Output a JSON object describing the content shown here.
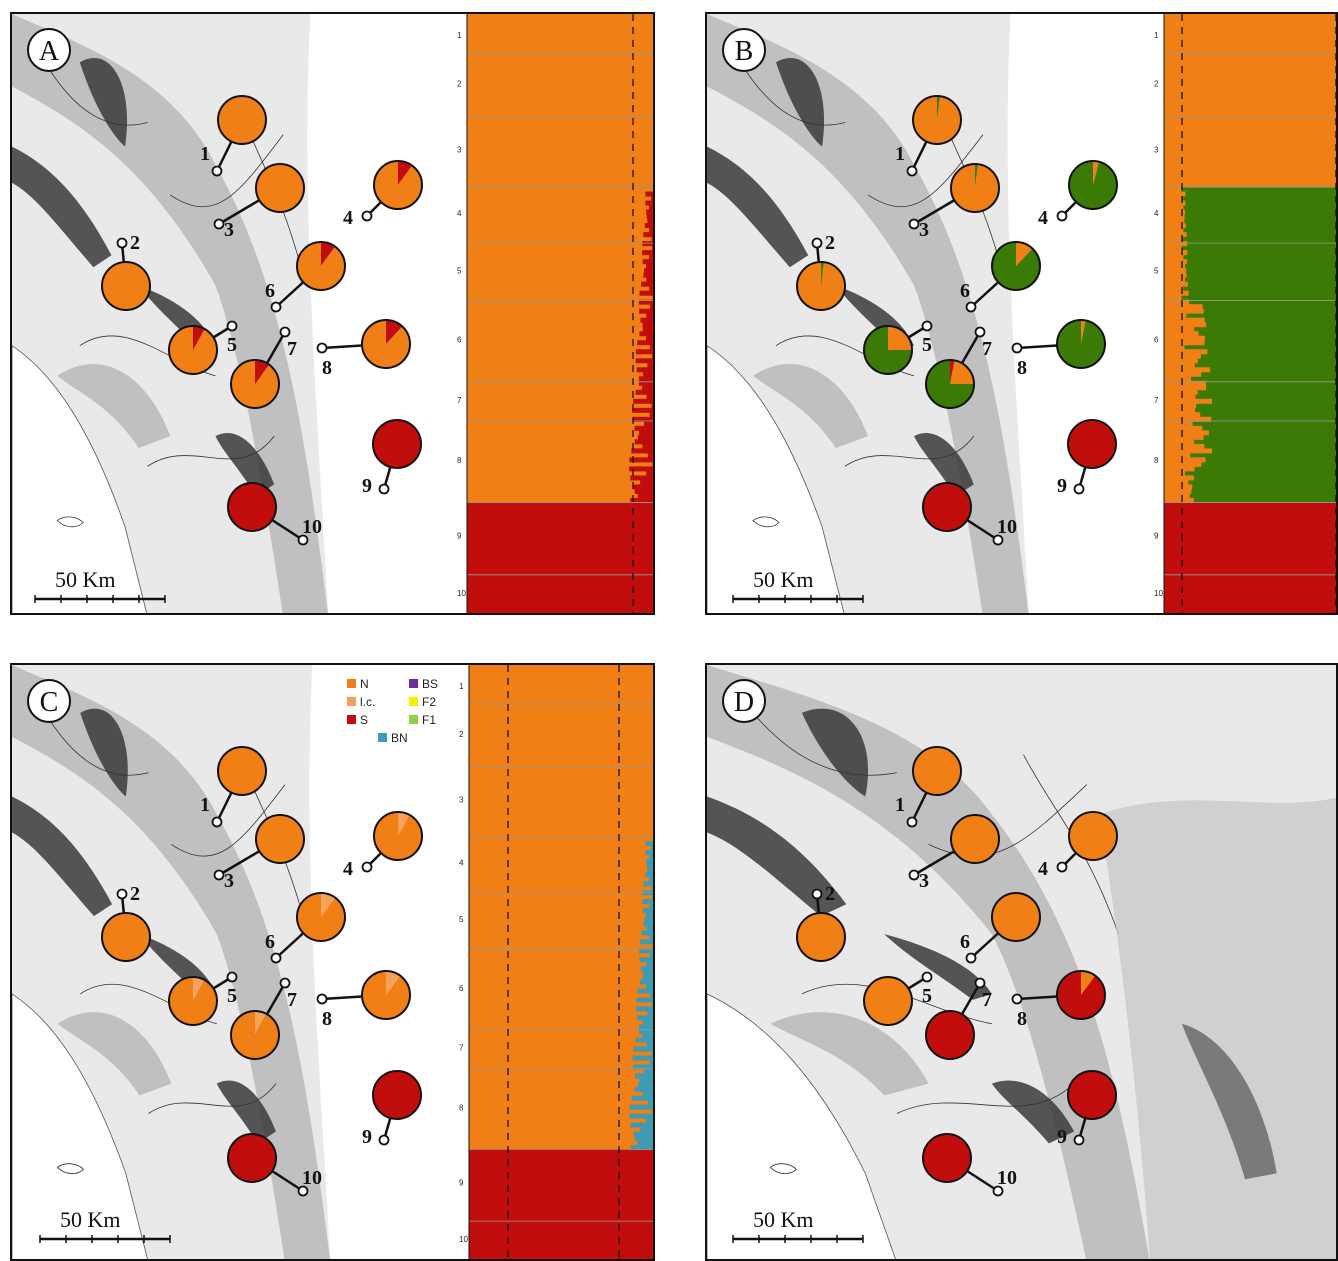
{
  "colors": {
    "N": "#f07f16",
    "S": "#c20d0d",
    "green": "#3a7a05",
    "BN": "#3d9cb4",
    "BS": "#6b2aa0",
    "F2": "#f3f000",
    "F1": "#8fcf4d",
    "map_dark": "#3a3a3a",
    "map_mid": "#8a8a8a",
    "map_light": "#cfcfcf"
  },
  "scale_label": "50 Km",
  "legend": [
    {
      "key": "N",
      "label": "N",
      "color": "#f07f16"
    },
    {
      "key": "lc",
      "label": "l.c.",
      "color": "#f0a060"
    },
    {
      "key": "S",
      "label": "S",
      "color": "#c20d0d"
    },
    {
      "key": "BN",
      "label": "BN",
      "color": "#3d9cb4"
    },
    {
      "key": "BS",
      "label": "BS",
      "color": "#6b2aa0"
    },
    {
      "key": "F2",
      "label": "F2",
      "color": "#f3f000"
    },
    {
      "key": "F1",
      "label": "F1",
      "color": "#8fcf4d"
    }
  ],
  "bar_ticks": [
    "1",
    "2",
    "3",
    "4",
    "5",
    "6",
    "7",
    "8",
    "9",
    "10"
  ],
  "panels": [
    {
      "id": "A",
      "pies": [
        {
          "label": "1",
          "slices": [
            {
              "c": "N",
              "f": 1.0
            }
          ]
        },
        {
          "label": "2",
          "slices": [
            {
              "c": "N",
              "f": 1.0
            }
          ]
        },
        {
          "label": "3",
          "slices": [
            {
              "c": "N",
              "f": 1.0
            }
          ]
        },
        {
          "label": "4",
          "slices": [
            {
              "c": "S",
              "f": 0.1
            },
            {
              "c": "N",
              "f": 0.9
            }
          ]
        },
        {
          "label": "5",
          "slices": [
            {
              "c": "S",
              "f": 0.08
            },
            {
              "c": "N",
              "f": 0.92
            }
          ]
        },
        {
          "label": "6",
          "slices": [
            {
              "c": "S",
              "f": 0.1
            },
            {
              "c": "N",
              "f": 0.9
            }
          ]
        },
        {
          "label": "7",
          "slices": [
            {
              "c": "S",
              "f": 0.1
            },
            {
              "c": "N",
              "f": 0.9
            }
          ]
        },
        {
          "label": "8",
          "slices": [
            {
              "c": "S",
              "f": 0.12
            },
            {
              "c": "N",
              "f": 0.88
            }
          ]
        },
        {
          "label": "9",
          "slices": [
            {
              "c": "S",
              "f": 1.0
            }
          ]
        },
        {
          "label": "10",
          "slices": [
            {
              "c": "S",
              "f": 1.0
            }
          ]
        }
      ],
      "bar": {
        "bg": "N",
        "accent": "S",
        "bottom": "S"
      }
    },
    {
      "id": "B",
      "pies": [
        {
          "label": "1",
          "slices": [
            {
              "c": "green",
              "f": 0.02
            },
            {
              "c": "N",
              "f": 0.98
            }
          ]
        },
        {
          "label": "2",
          "slices": [
            {
              "c": "green",
              "f": 0.02
            },
            {
              "c": "N",
              "f": 0.98
            }
          ]
        },
        {
          "label": "3",
          "slices": [
            {
              "c": "green",
              "f": 0.02
            },
            {
              "c": "N",
              "f": 0.98
            }
          ]
        },
        {
          "label": "4",
          "slices": [
            {
              "c": "N",
              "f": 0.04
            },
            {
              "c": "green",
              "f": 0.96
            }
          ]
        },
        {
          "label": "5",
          "slices": [
            {
              "c": "N",
              "f": 0.25
            },
            {
              "c": "green",
              "f": 0.75
            }
          ]
        },
        {
          "label": "6",
          "slices": [
            {
              "c": "N",
              "f": 0.12
            },
            {
              "c": "green",
              "f": 0.88
            }
          ]
        },
        {
          "label": "7",
          "slices": [
            {
              "c": "S",
              "f": 0.03
            },
            {
              "c": "N",
              "f": 0.22
            },
            {
              "c": "green",
              "f": 0.75
            }
          ]
        },
        {
          "label": "8",
          "slices": [
            {
              "c": "N",
              "f": 0.03
            },
            {
              "c": "green",
              "f": 0.97
            }
          ]
        },
        {
          "label": "9",
          "slices": [
            {
              "c": "S",
              "f": 1.0
            }
          ]
        },
        {
          "label": "10",
          "slices": [
            {
              "c": "S",
              "f": 1.0
            }
          ]
        }
      ],
      "bar": {
        "bg": "N",
        "mid": "green",
        "accent": "N",
        "bottom": "S"
      }
    },
    {
      "id": "C",
      "pies": [
        {
          "label": "1",
          "slices": [
            {
              "c": "N",
              "f": 1.0
            }
          ]
        },
        {
          "label": "2",
          "slices": [
            {
              "c": "N",
              "f": 1.0
            }
          ]
        },
        {
          "label": "3",
          "slices": [
            {
              "c": "N",
              "f": 1.0
            }
          ]
        },
        {
          "label": "4",
          "slices": [
            {
              "c": "lc",
              "f": 0.08
            },
            {
              "c": "N",
              "f": 0.92
            }
          ]
        },
        {
          "label": "5",
          "slices": [
            {
              "c": "lc",
              "f": 0.08
            },
            {
              "c": "N",
              "f": 0.92
            }
          ]
        },
        {
          "label": "6",
          "slices": [
            {
              "c": "lc",
              "f": 0.1
            },
            {
              "c": "N",
              "f": 0.9
            }
          ]
        },
        {
          "label": "7",
          "slices": [
            {
              "c": "lc",
              "f": 0.08
            },
            {
              "c": "N",
              "f": 0.92
            }
          ]
        },
        {
          "label": "8",
          "slices": [
            {
              "c": "lc",
              "f": 0.1
            },
            {
              "c": "N",
              "f": 0.9
            }
          ]
        },
        {
          "label": "9",
          "slices": [
            {
              "c": "S",
              "f": 1.0
            }
          ]
        },
        {
          "label": "10",
          "slices": [
            {
              "c": "S",
              "f": 1.0
            }
          ]
        }
      ],
      "bar": {
        "bg": "N",
        "accent": "BN",
        "bottom": "S"
      }
    },
    {
      "id": "D",
      "pies": [
        {
          "label": "1",
          "slices": [
            {
              "c": "N",
              "f": 1.0
            }
          ]
        },
        {
          "label": "2",
          "slices": [
            {
              "c": "N",
              "f": 1.0
            }
          ]
        },
        {
          "label": "3",
          "slices": [
            {
              "c": "N",
              "f": 1.0
            }
          ]
        },
        {
          "label": "4",
          "slices": [
            {
              "c": "N",
              "f": 1.0
            }
          ]
        },
        {
          "label": "5",
          "slices": [
            {
              "c": "N",
              "f": 1.0
            }
          ]
        },
        {
          "label": "6",
          "slices": [
            {
              "c": "N",
              "f": 1.0
            }
          ]
        },
        {
          "label": "7",
          "slices": [
            {
              "c": "S",
              "f": 1.0
            }
          ]
        },
        {
          "label": "8",
          "slices": [
            {
              "c": "N",
              "f": 0.1
            },
            {
              "c": "S",
              "f": 0.9
            }
          ]
        },
        {
          "label": "9",
          "slices": [
            {
              "c": "S",
              "f": 1.0
            }
          ]
        },
        {
          "label": "10",
          "slices": [
            {
              "c": "S",
              "f": 1.0
            }
          ]
        }
      ]
    }
  ]
}
